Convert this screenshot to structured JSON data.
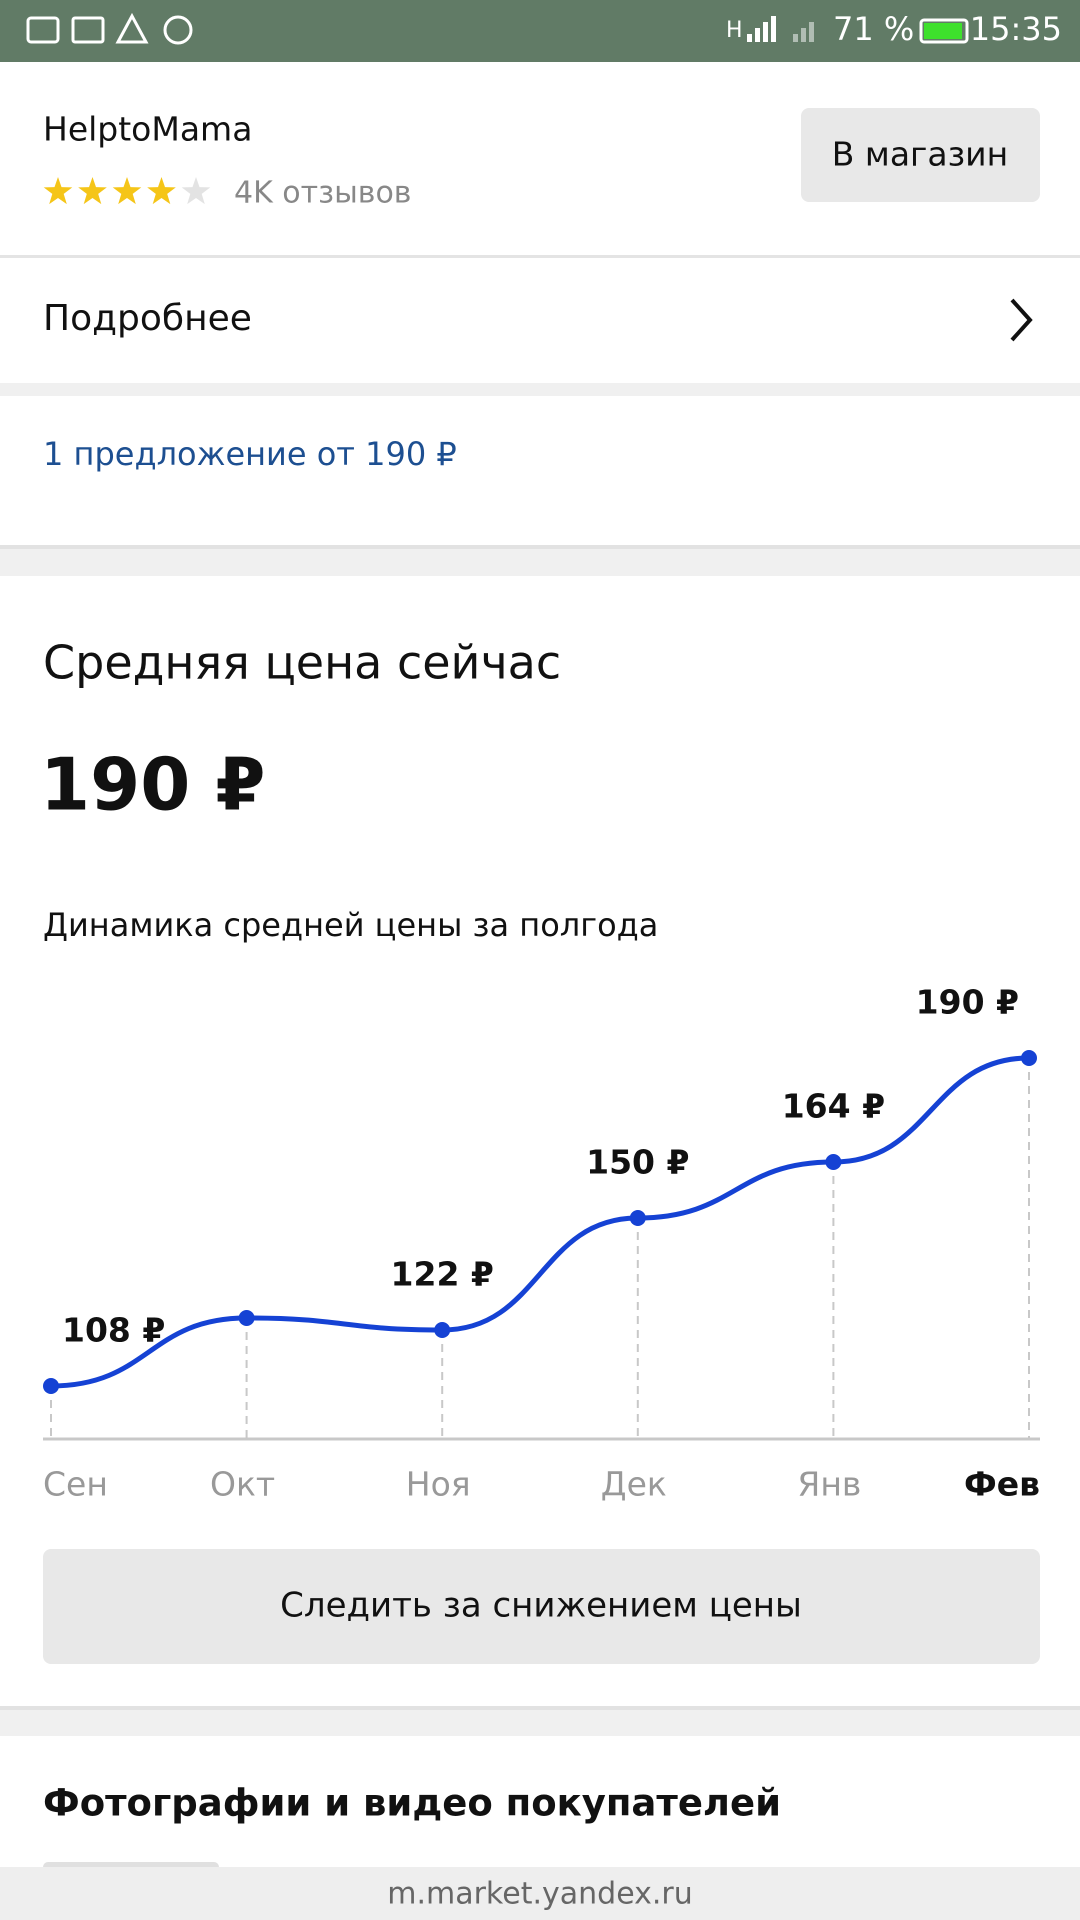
{
  "status_bar": {
    "network": "H",
    "battery": "71 %",
    "time": "15:35"
  },
  "shop": {
    "name": "HelptoMama",
    "rating": 4,
    "rating_max": 5,
    "reviews": "4K отзывов",
    "button": "В магазин"
  },
  "details": "Подробнее",
  "offers": "1 предложение от 190 ₽",
  "price_section": {
    "title": "Средняя цена сейчас",
    "price": "190 ₽"
  },
  "chart_data": {
    "type": "line",
    "title": "Динамика средней цены за полгода",
    "categories": [
      "Сен",
      "Окт",
      "Ноя",
      "Дек",
      "Янв",
      "Фев"
    ],
    "values": [
      108,
      125,
      122,
      150,
      164,
      190
    ],
    "value_labels": [
      "108 ₽",
      null,
      "122 ₽",
      "150 ₽",
      "164 ₽",
      "190 ₽"
    ],
    "color": "#1542d4"
  },
  "track_button": "Следить за снижением цены",
  "photos_title": "Фотографии и видео покупателей",
  "url": "m.market.yandex.ru"
}
